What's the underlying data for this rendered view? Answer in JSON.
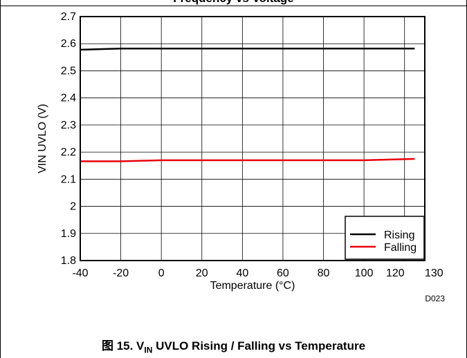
{
  "header": {
    "partial_title": "Frequency vs Voltage"
  },
  "chart_data": {
    "type": "line",
    "title": "",
    "xlabel": "Temperature (°C)",
    "ylabel": "VIN UVLO (V)",
    "xlim": [
      -40,
      130
    ],
    "ylim": [
      1.8,
      2.7
    ],
    "x_ticks": [
      -40,
      -20,
      0,
      20,
      40,
      60,
      80,
      100,
      120,
      130
    ],
    "y_ticks": [
      1.8,
      1.9,
      2.0,
      2.1,
      2.2,
      2.3,
      2.4,
      2.5,
      2.6,
      2.7
    ],
    "x_tick_labels": [
      "-40",
      "-20",
      "0",
      "20",
      "40",
      "60",
      "80",
      "100",
      "120",
      "130"
    ],
    "y_tick_labels": [
      "1.8",
      "1.9",
      "2",
      "2.1",
      "2.2",
      "2.3",
      "2.4",
      "2.5",
      "2.6",
      "2.7"
    ],
    "grid": true,
    "legend_position": "bottom-right",
    "series": [
      {
        "name": "Rising",
        "color": "#000000",
        "x": [
          -40,
          -20,
          0,
          20,
          40,
          60,
          80,
          100,
          125
        ],
        "y": [
          2.578,
          2.582,
          2.582,
          2.582,
          2.582,
          2.582,
          2.582,
          2.582,
          2.582
        ]
      },
      {
        "name": "Falling",
        "color": "#e8000b",
        "x": [
          -40,
          -20,
          0,
          20,
          40,
          60,
          80,
          100,
          125
        ],
        "y": [
          2.166,
          2.166,
          2.17,
          2.17,
          2.17,
          2.17,
          2.17,
          2.17,
          2.175
        ]
      }
    ],
    "code": "D023"
  },
  "caption": {
    "prefix": "图 15. V",
    "subscript": "IN",
    "text": " UVLO Rising / Falling vs Temperature"
  }
}
